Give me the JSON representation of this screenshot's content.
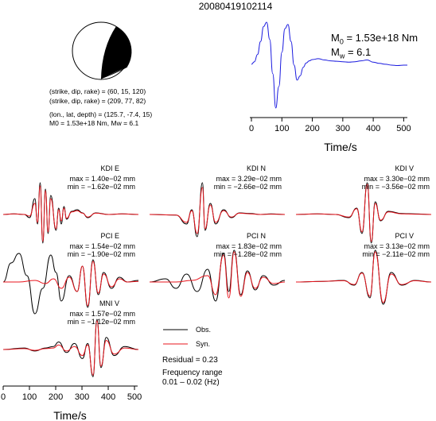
{
  "title": "20080419102114",
  "mechanism": {
    "plane1": "(strike, dip, rake) = (60, 15, 120)",
    "plane2": "(strike, dip, rake) = (209, 77, 82)",
    "location": "(lon., lat, depth) = (125.7, -7.4, 15)",
    "moment_line": "M0 = 1.53e+18 Nm, Mw = 6.1"
  },
  "stf": {
    "m0_label": "M",
    "m0_sub": "0",
    "m0_value": " = 1.53e+18 Nm",
    "mw_label": "M",
    "mw_sub": "w",
    "mw_value": " = 6.1"
  },
  "legend": {
    "obs": "Obs.",
    "syn": "Syn.",
    "residual": "Residual = 0.23",
    "freq_title": "Frequency range",
    "freq_range": "0.01 – 0.02 (Hz)"
  },
  "colors": {
    "observed": "#000000",
    "synthetic": "#e8141c",
    "stf": "#1a1adf"
  },
  "chart_data": [
    {
      "type": "line",
      "name": "source-time-function",
      "xlabel": "Time/s",
      "xlim": [
        0,
        512
      ],
      "xticks": [
        0,
        100,
        200,
        300,
        400,
        500
      ],
      "series": [
        {
          "name": "",
          "x": [
            0,
            10,
            20,
            30,
            40,
            50,
            60,
            70,
            80,
            90,
            100,
            110,
            120,
            130,
            140,
            150,
            160,
            170,
            180,
            190,
            200,
            220,
            240,
            260,
            280,
            300,
            320,
            340,
            360,
            380,
            400,
            420,
            440,
            460,
            480,
            500,
            512
          ],
          "y": [
            0.02,
            0.08,
            0.25,
            0.55,
            0.9,
            1.0,
            0.6,
            -0.2,
            -1.0,
            -0.5,
            0.3,
            0.85,
            0.95,
            0.55,
            0.0,
            -0.35,
            -0.25,
            -0.05,
            0.05,
            0.1,
            0.13,
            0.15,
            0.12,
            0.1,
            0.09,
            0.08,
            0.07,
            0.08,
            0.1,
            0.12,
            0.07,
            0.04,
            0.02,
            0.0,
            -0.01,
            0.0,
            0.0
          ]
        }
      ]
    },
    {
      "type": "line",
      "station": "KDI E",
      "max": "max = 1.40e−02 mm",
      "min": "min = −1.62e−02 mm",
      "xlim": [
        0,
        512
      ],
      "series": [
        {
          "name": "Obs.",
          "x": [
            0,
            40,
            80,
            100,
            120,
            130,
            140,
            150,
            160,
            170,
            180,
            200,
            210,
            220,
            230,
            240,
            260,
            280,
            300,
            320,
            350,
            400,
            450,
            512
          ],
          "y": [
            0.0,
            0.02,
            0.0,
            -0.1,
            0.5,
            -0.3,
            1.0,
            -0.9,
            0.8,
            -0.6,
            0.6,
            -0.5,
            0.2,
            -0.3,
            0.25,
            -0.15,
            0.1,
            0.15,
            0.05,
            -0.1,
            0.05,
            0.0,
            0.02,
            0.0
          ]
        },
        {
          "name": "Syn.",
          "x": [
            0,
            40,
            80,
            100,
            120,
            130,
            140,
            150,
            160,
            170,
            180,
            200,
            210,
            220,
            230,
            240,
            260,
            280,
            300,
            320,
            350,
            400,
            450,
            512
          ],
          "y": [
            0.0,
            0.02,
            0.0,
            -0.05,
            0.35,
            -0.25,
            0.9,
            -0.85,
            0.75,
            -0.55,
            0.5,
            -0.45,
            0.15,
            -0.2,
            0.2,
            -0.12,
            0.08,
            0.12,
            0.04,
            -0.08,
            0.04,
            0.0,
            0.02,
            0.0
          ]
        }
      ]
    },
    {
      "type": "line",
      "station": "KDI N",
      "max": "max = 3.29e−02 mm",
      "min": "min = −2.66e−02 mm",
      "xlim": [
        0,
        512
      ],
      "series": [
        {
          "name": "Obs.",
          "x": [
            0,
            100,
            140,
            160,
            180,
            200,
            210,
            230,
            250,
            280,
            310,
            340,
            380,
            420,
            460,
            512
          ],
          "y": [
            0.0,
            -0.02,
            -0.3,
            0.15,
            -0.7,
            1.0,
            -0.5,
            0.35,
            -0.3,
            0.15,
            -0.1,
            0.05,
            0.03,
            0.0,
            0.02,
            0.0
          ]
        },
        {
          "name": "Syn.",
          "x": [
            0,
            100,
            140,
            160,
            180,
            200,
            210,
            230,
            250,
            280,
            310,
            340,
            380,
            420,
            460,
            512
          ],
          "y": [
            0.0,
            -0.02,
            -0.25,
            0.12,
            -0.6,
            0.85,
            -0.45,
            0.3,
            -0.25,
            0.12,
            -0.08,
            0.04,
            0.02,
            0.0,
            0.01,
            0.0
          ]
        }
      ]
    },
    {
      "type": "line",
      "station": "KDI V",
      "max": "max = 3.30e−02 mm",
      "min": "min = −3.56e−02 mm",
      "xlim": [
        0,
        512
      ],
      "series": [
        {
          "name": "Obs.",
          "x": [
            0,
            80,
            150,
            200,
            230,
            250,
            270,
            285,
            300,
            320,
            350,
            400,
            450,
            512
          ],
          "y": [
            0.0,
            0.02,
            0.0,
            -0.1,
            0.2,
            -0.6,
            1.0,
            -0.9,
            0.4,
            -0.2,
            0.1,
            0.03,
            0.02,
            0.0
          ]
        },
        {
          "name": "Syn.",
          "x": [
            0,
            80,
            150,
            200,
            230,
            250,
            270,
            285,
            300,
            320,
            350,
            400,
            450,
            512
          ],
          "y": [
            0.0,
            0.02,
            0.0,
            -0.08,
            0.18,
            -0.55,
            0.95,
            -0.85,
            0.35,
            -0.18,
            0.08,
            0.02,
            0.01,
            0.0
          ]
        }
      ]
    },
    {
      "type": "line",
      "station": "PCI E",
      "max": "max = 1.54e−02 mm",
      "min": "min = −1.90e−02 mm",
      "xlim": [
        0,
        512
      ],
      "series": [
        {
          "name": "Obs.",
          "x": [
            0,
            30,
            60,
            90,
            120,
            150,
            180,
            200,
            220,
            250,
            280,
            300,
            320,
            340,
            360,
            380,
            410,
            440,
            470,
            512
          ],
          "y": [
            0.0,
            0.6,
            0.9,
            0.2,
            -1.0,
            -0.2,
            0.85,
            0.3,
            -0.6,
            0.2,
            -0.3,
            0.5,
            -0.8,
            0.7,
            -0.4,
            0.3,
            -0.2,
            0.15,
            0.0,
            0.05
          ]
        },
        {
          "name": "Syn.",
          "x": [
            0,
            60,
            120,
            160,
            190,
            220,
            250,
            280,
            300,
            320,
            340,
            360,
            380,
            410,
            440,
            470,
            512
          ],
          "y": [
            0.0,
            0.0,
            0.05,
            -0.05,
            0.1,
            -0.2,
            0.15,
            -0.3,
            0.5,
            -0.75,
            0.65,
            -0.35,
            0.25,
            -0.15,
            0.1,
            0.0,
            0.02
          ]
        }
      ]
    },
    {
      "type": "line",
      "station": "PCI N",
      "max": "max = 1.83e−02 mm",
      "min": "min = −1.28e−02 mm",
      "xlim": [
        0,
        512
      ],
      "series": [
        {
          "name": "Obs.",
          "x": [
            0,
            60,
            100,
            140,
            180,
            220,
            250,
            280,
            300,
            320,
            345,
            370,
            400,
            430,
            470,
            512
          ],
          "y": [
            0.0,
            0.1,
            -0.2,
            0.25,
            -0.3,
            0.4,
            -0.6,
            0.9,
            -0.3,
            1.0,
            -0.4,
            0.35,
            -0.25,
            0.2,
            -0.1,
            0.05
          ]
        },
        {
          "name": "Syn.",
          "x": [
            0,
            100,
            160,
            220,
            250,
            280,
            300,
            320,
            345,
            370,
            400,
            430,
            470,
            512
          ],
          "y": [
            0.0,
            0.0,
            0.05,
            0.2,
            -0.4,
            0.85,
            -0.5,
            0.95,
            -0.45,
            0.3,
            -0.2,
            0.15,
            -0.05,
            0.0
          ]
        }
      ]
    },
    {
      "type": "line",
      "station": "PCI V",
      "max": "max = 3.13e−02 mm",
      "min": "min = −2.11e−02 mm",
      "xlim": [
        0,
        512
      ],
      "series": [
        {
          "name": "Obs.",
          "x": [
            0,
            100,
            180,
            220,
            250,
            280,
            300,
            330,
            360,
            400,
            450,
            512
          ],
          "y": [
            0.0,
            0.02,
            0.05,
            -0.1,
            0.3,
            -0.5,
            1.0,
            -0.7,
            0.3,
            -0.1,
            0.05,
            0.0
          ]
        },
        {
          "name": "Syn.",
          "x": [
            0,
            100,
            180,
            220,
            250,
            280,
            300,
            330,
            360,
            400,
            450,
            512
          ],
          "y": [
            0.0,
            0.02,
            0.04,
            -0.08,
            0.28,
            -0.45,
            0.95,
            -0.65,
            0.25,
            -0.08,
            0.04,
            0.0
          ]
        }
      ]
    },
    {
      "type": "line",
      "station": "MNI V",
      "max": "max = 1.57e−02 mm",
      "min": "min = −1.12e−02 mm",
      "xlabel": "Time/s",
      "xlim": [
        0,
        512
      ],
      "xticks": [
        0,
        100,
        200,
        300,
        400,
        500
      ],
      "series": [
        {
          "name": "Obs.",
          "x": [
            0,
            80,
            120,
            160,
            190,
            210,
            240,
            270,
            300,
            320,
            340,
            355,
            370,
            390,
            420,
            460,
            512
          ],
          "y": [
            0.0,
            0.05,
            -0.05,
            0.05,
            0.1,
            0.25,
            -0.1,
            0.2,
            -0.3,
            0.2,
            -0.9,
            1.0,
            -0.6,
            0.4,
            -0.2,
            0.1,
            0.0
          ]
        },
        {
          "name": "Syn.",
          "x": [
            0,
            80,
            120,
            160,
            190,
            210,
            240,
            270,
            300,
            320,
            340,
            355,
            370,
            390,
            420,
            460,
            512
          ],
          "y": [
            0.0,
            0.03,
            -0.03,
            0.03,
            0.05,
            0.15,
            -0.05,
            0.1,
            -0.2,
            0.15,
            -0.85,
            0.95,
            -0.55,
            0.3,
            -0.15,
            0.05,
            0.0
          ]
        }
      ]
    }
  ]
}
